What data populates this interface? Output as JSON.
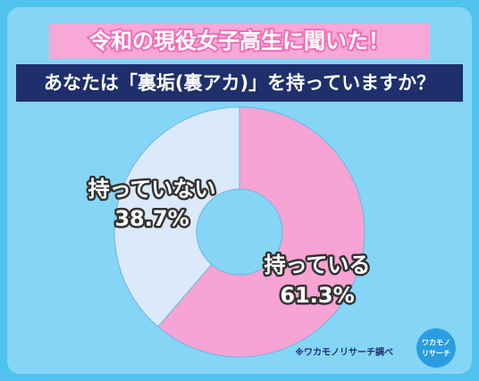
{
  "chart_data": {
    "type": "donut",
    "title": "令和の現役女子高生に聞いた！",
    "subtitle": "あなたは「裏垢(裏アカ)」を持っていますか？",
    "categories": [
      "持っている",
      "持っていない"
    ],
    "values": [
      61.3,
      38.7
    ],
    "value_labels": [
      "61.3%",
      "38.7%"
    ],
    "colors": [
      "#f7a3d3",
      "#dbe9fb"
    ],
    "note": "※ワカモノリサーチ調べ",
    "logo": [
      "ワカモノ",
      "リサーチ"
    ]
  }
}
